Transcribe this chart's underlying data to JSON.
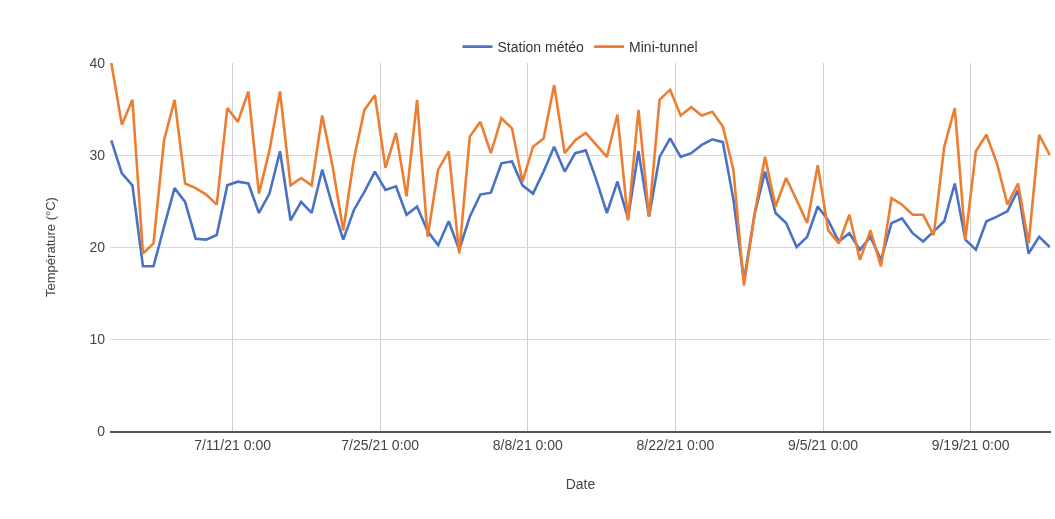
{
  "chart_data": {
    "type": "line",
    "xlabel": "Date",
    "ylabel": "Température (°C)",
    "x": [
      "--06-29T12:00",
      "--06-30T12:00",
      "--07-01T12:00",
      "--07-02T12:00",
      "--07-03T12:00",
      "--07-04T12:00",
      "--07-05T12:00",
      "--07-06T12:00",
      "--07-07T12:00",
      "--07-08T12:00",
      "--07-09T12:00",
      "--07-10T12:00",
      "--07-11T12:00",
      "--07-12T12:00",
      "--07-13T12:00",
      "--07-14T12:00",
      "--07-15T12:00",
      "--07-16T12:00",
      "--07-17T12:00",
      "--07-18T12:00",
      "--07-19T12:00",
      "--07-20T12:00",
      "--07-21T12:00",
      "--07-22T12:00",
      "--07-23T12:00",
      "--07-24T12:00",
      "--07-25T12:00",
      "--07-26T12:00",
      "--07-27T12:00",
      "--07-28T12:00",
      "--07-29T12:00",
      "--07-30T12:00",
      "--07-31T12:00",
      "--08-01T12:00",
      "--08-02T12:00",
      "--08-03T12:00",
      "--08-04T12:00",
      "--08-05T12:00",
      "--08-06T12:00",
      "--08-07T12:00",
      "--08-08T12:00",
      "--08-09T12:00",
      "--08-10T12:00",
      "--08-11T12:00",
      "--08-12T12:00",
      "--08-13T12:00",
      "--08-14T12:00",
      "--08-15T12:00",
      "--08-16T12:00",
      "--08-17T12:00",
      "--08-18T12:00",
      "--08-19T12:00",
      "--08-20T12:00",
      "--08-21T12:00",
      "--08-22T12:00",
      "--08-23T12:00",
      "--08-24T12:00",
      "--08-25T12:00",
      "--08-26T12:00",
      "--08-27T12:00",
      "--08-28T12:00",
      "--08-29T12:00",
      "--08-30T12:00",
      "--08-31T12:00",
      "--09-01T12:00",
      "--09-02T12:00",
      "--09-03T12:00",
      "--09-04T12:00",
      "--09-05T12:00",
      "--09-06T12:00",
      "--09-07T12:00",
      "--09-08T12:00",
      "--09-09T12:00",
      "--09-10T12:00",
      "--09-11T12:00",
      "--09-12T12:00",
      "--09-13T12:00",
      "--09-14T12:00",
      "--09-15T12:00",
      "--09-16T12:00",
      "--09-17T12:00",
      "--09-18T12:00",
      "--09-19T12:00",
      "--09-20T12:00",
      "--09-21T12:00",
      "--09-22T12:00",
      "--09-23T12:00",
      "--09-24T12:00",
      "--09-25T12:00",
      "--09-26T12:00"
    ],
    "series": [
      {
        "name": "Station météo",
        "color": "#4a72c4",
        "values": [
          31.6,
          28.0,
          26.7,
          17.9,
          17.9,
          22.2,
          26.4,
          24.9,
          20.9,
          20.8,
          21.3,
          26.7,
          27.1,
          26.9,
          23.7,
          25.8,
          30.4,
          22.9,
          24.9,
          23.7,
          28.4,
          24.4,
          20.8,
          24.0,
          26.0,
          28.2,
          26.2,
          26.6,
          23.5,
          24.4,
          21.7,
          20.2,
          22.8,
          19.7,
          23.3,
          25.7,
          25.9,
          29.1,
          29.3,
          26.7,
          25.8,
          28.2,
          30.9,
          28.2,
          30.2,
          30.5,
          27.3,
          23.7,
          27.1,
          23.1,
          30.4,
          23.3,
          29.8,
          31.8,
          29.8,
          30.2,
          31.1,
          31.7,
          31.4,
          25.2,
          16.3,
          23.5,
          28.2,
          23.7,
          22.6,
          20.0,
          21.1,
          24.4,
          22.9,
          20.6,
          21.5,
          19.7,
          21.1,
          18.6,
          22.6,
          23.1,
          21.5,
          20.6,
          21.7,
          22.8,
          26.9,
          20.8,
          19.7,
          22.8,
          23.3,
          23.9,
          26.2,
          19.3,
          21.1,
          20.0
        ]
      },
      {
        "name": "Mini-tunnel",
        "color": "#ed7d31",
        "values": [
          40.0,
          33.3,
          36.0,
          19.3,
          20.4,
          31.6,
          36.0,
          26.9,
          26.4,
          25.7,
          24.6,
          35.1,
          33.6,
          36.9,
          25.8,
          30.5,
          36.9,
          26.7,
          27.5,
          26.7,
          34.3,
          28.7,
          21.8,
          29.5,
          34.9,
          36.5,
          28.6,
          32.4,
          25.5,
          36.0,
          21.1,
          28.4,
          30.4,
          19.3,
          32.0,
          33.6,
          30.2,
          34.0,
          32.9,
          27.1,
          30.9,
          31.8,
          37.6,
          30.2,
          31.6,
          32.4,
          31.1,
          29.8,
          34.4,
          22.9,
          34.9,
          23.3,
          36.0,
          37.1,
          34.3,
          35.2,
          34.3,
          34.7,
          33.1,
          28.4,
          15.8,
          23.5,
          29.8,
          24.4,
          27.5,
          25.1,
          22.6,
          28.9,
          21.8,
          20.4,
          23.5,
          18.6,
          21.8,
          17.9,
          25.3,
          24.6,
          23.5,
          23.5,
          21.3,
          30.9,
          35.1,
          20.8,
          30.4,
          32.2,
          29.1,
          24.6,
          26.9,
          20.4,
          32.2,
          30.0
        ]
      }
    ],
    "xlim": [
      "--06-29T09:00",
      "--09-26T15:00"
    ],
    "xticks": [
      {
        "value": "--07-11",
        "label": "7/11/21 0:00"
      },
      {
        "value": "--07-25",
        "label": "7/25/21 0:00"
      },
      {
        "value": "--08-08",
        "label": "8/8/21 0:00"
      },
      {
        "value": "--08-22",
        "label": "8/22/21 0:00"
      },
      {
        "value": "--09-05",
        "label": "9/5/21 0:00"
      },
      {
        "value": "--09-19",
        "label": "9/19/21 0:00"
      }
    ],
    "ylim": [
      0,
      40
    ],
    "yticks": [
      0,
      10,
      20,
      30,
      40
    ],
    "grid": true,
    "legend": "top",
    "marker": "none",
    "line_style": "solid"
  }
}
